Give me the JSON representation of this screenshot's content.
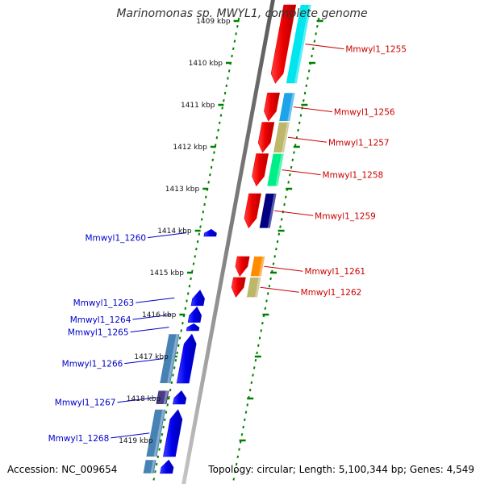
{
  "title": "Marinomonas sp. MWYL1, complete genome",
  "footer": {
    "accession": "Accession: NC_009654",
    "topology": "Topology: circular",
    "length": "Length: 5,100,344 bp",
    "genes": "Genes: 4,549"
  },
  "ticks": [
    {
      "kbp": 1409,
      "label": "1409 kbp"
    },
    {
      "kbp": 1410,
      "label": "1410 kbp"
    },
    {
      "kbp": 1411,
      "label": "1411 kbp"
    },
    {
      "kbp": 1412,
      "label": "1412 kbp"
    },
    {
      "kbp": 1413,
      "label": "1413 kbp"
    },
    {
      "kbp": 1414,
      "label": "1414 kbp"
    },
    {
      "kbp": 1415,
      "label": "1415 kbp"
    },
    {
      "kbp": 1416,
      "label": "1416 kbp"
    },
    {
      "kbp": 1417,
      "label": "1417 kbp"
    },
    {
      "kbp": 1418,
      "label": "1418 kbp"
    },
    {
      "kbp": 1419,
      "label": "1419 kbp"
    }
  ],
  "genes": [
    {
      "name": "Mmwyl1_1255",
      "strand": "+",
      "start_kbp": 1408.6,
      "end_kbp": 1410.5,
      "color": "#ee0000",
      "feature_color": "#00e5ee"
    },
    {
      "name": "Mmwyl1_1256",
      "strand": "+",
      "start_kbp": 1410.7,
      "end_kbp": 1411.4,
      "color": "#ee0000",
      "feature_color": "#1ea2e8"
    },
    {
      "name": "Mmwyl1_1257",
      "strand": "+",
      "start_kbp": 1411.4,
      "end_kbp": 1412.15,
      "color": "#ee0000",
      "feature_color": "#bdb76b"
    },
    {
      "name": "Mmwyl1_1258",
      "strand": "+",
      "start_kbp": 1412.15,
      "end_kbp": 1412.95,
      "color": "#ee0000",
      "feature_color": "#00ee8a"
    },
    {
      "name": "Mmwyl1_1259",
      "strand": "+",
      "start_kbp": 1413.1,
      "end_kbp": 1413.95,
      "color": "#ee0000",
      "feature_color": "#000080"
    },
    {
      "name": "Mmwyl1_1260",
      "strand": "-",
      "start_kbp": 1413.95,
      "end_kbp": 1414.15,
      "color": "#0000ee"
    },
    {
      "name": "Mmwyl1_1261",
      "strand": "+",
      "start_kbp": 1414.6,
      "end_kbp": 1415.1,
      "color": "#ee0000",
      "feature_color": "#ff8c00"
    },
    {
      "name": "Mmwyl1_1262",
      "strand": "+",
      "start_kbp": 1415.1,
      "end_kbp": 1415.6,
      "color": "#ee0000",
      "feature_color": "#bdb76b"
    },
    {
      "name": "Mmwyl1_1263",
      "strand": "-",
      "start_kbp": 1415.4,
      "end_kbp": 1415.8,
      "color": "#0000ee"
    },
    {
      "name": "Mmwyl1_1264",
      "strand": "-",
      "start_kbp": 1415.8,
      "end_kbp": 1416.2,
      "color": "#0000ee"
    },
    {
      "name": "Mmwyl1_1265",
      "strand": "-",
      "start_kbp": 1416.2,
      "end_kbp": 1416.4,
      "color": "#0000ee"
    },
    {
      "name": "Mmwyl1_1266",
      "strand": "-",
      "start_kbp": 1416.45,
      "end_kbp": 1417.65,
      "color": "#0000ee",
      "feature_color": "#4682b4"
    },
    {
      "name": "Mmwyl1_1267",
      "strand": "-",
      "start_kbp": 1417.8,
      "end_kbp": 1418.15,
      "color": "#0000ee",
      "feature_color": "#483d8b"
    },
    {
      "name": "Mmwyl1_1268",
      "strand": "-",
      "start_kbp": 1418.25,
      "end_kbp": 1419.4,
      "color": "#0000ee",
      "feature_color": "#4682b4"
    },
    {
      "strand": "-",
      "start_kbp": 1419.45,
      "end_kbp": 1419.8,
      "color": "#0000ee",
      "feature_color": "#4682b4"
    }
  ],
  "colors": {
    "dna_line": "#808080",
    "tick": "#008000",
    "forward_label": "#cc0000",
    "reverse_label": "#0000cc"
  }
}
